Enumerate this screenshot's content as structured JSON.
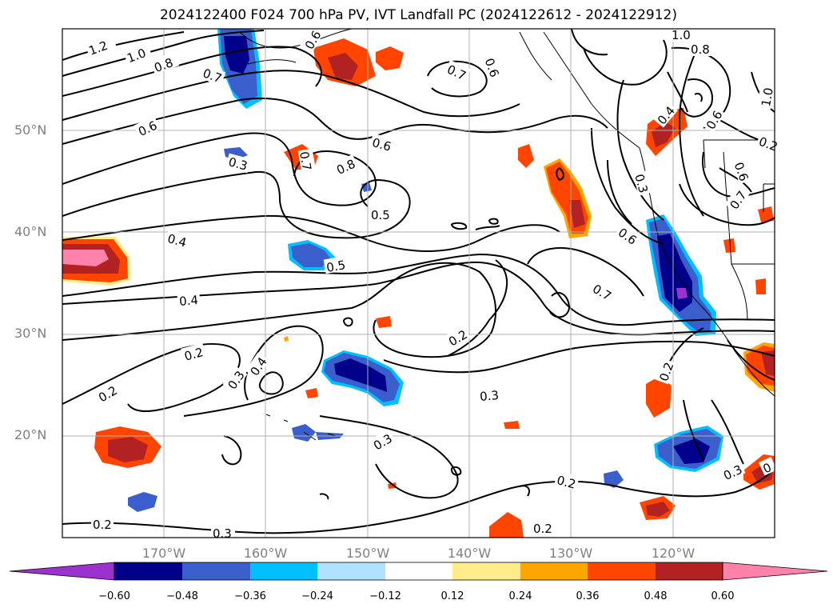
{
  "title": "2024122400 F024 700 hPa PV, IVT Landfall PC (2024122612 - 2024122912)",
  "map": {
    "lon_range": [
      -180,
      -110
    ],
    "lat_range": [
      10,
      60
    ],
    "lat_ticks": [
      "50°N",
      "40°N",
      "30°N",
      "20°N"
    ],
    "lon_ticks": [
      "170°W",
      "160°W",
      "150°W",
      "140°W",
      "130°W",
      "120°W"
    ],
    "gridlines": true
  },
  "contour_labels": [
    "1.2",
    "1.0",
    "0.8",
    "0.7",
    "0.6",
    "0.3",
    "0.6",
    "0.8",
    "0.5",
    "0.4",
    "0.5",
    "0.4",
    "0.2",
    "0.2",
    "0.3",
    "0.4",
    "0.3",
    "0.2",
    "0.3",
    "0.2",
    "0.2",
    "0.7",
    "0.6",
    "0.7",
    "0.6",
    "0.3",
    "0.4",
    "0.2",
    "0.3",
    "0.2",
    "1.0",
    "0.8",
    "1.0",
    "0.6",
    "0.6",
    "0.7",
    "0.7",
    "0.6",
    "0.3",
    "0.2",
    "0"
  ],
  "colorbar": {
    "ticks": [
      "−0.60",
      "−0.48",
      "−0.36",
      "−0.24",
      "−0.12",
      "0.12",
      "0.24",
      "0.36",
      "0.48",
      "0.60"
    ],
    "colors": [
      "#9a32cd",
      "#00008b",
      "#3a5fcd",
      "#00bfff",
      "#b0e2ff",
      "#ffffff",
      "#ffec8b",
      "#ffa500",
      "#ff4500",
      "#b22222",
      "#ff82ab"
    ]
  }
}
